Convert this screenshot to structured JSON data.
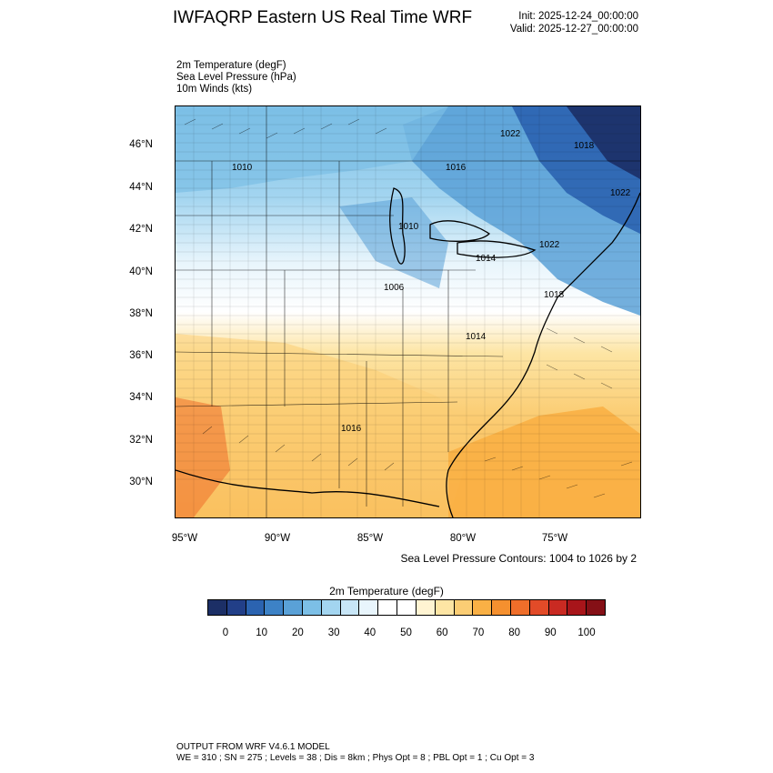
{
  "header": {
    "title": "IWFAQRP Eastern US Real Time WRF",
    "init": "Init: 2025-12-24_00:00:00",
    "valid": "Valid: 2025-12-27_00:00:00"
  },
  "fields": [
    "2m Temperature   (degF)",
    "Sea Level Pressure   (hPa)",
    "10m Winds   (kts)"
  ],
  "map": {
    "lat_labels": [
      "46°N",
      "44°N",
      "42°N",
      "40°N",
      "38°N",
      "36°N",
      "34°N",
      "32°N",
      "30°N"
    ],
    "lon_labels": [
      "95°W",
      "90°W",
      "85°W",
      "80°W",
      "75°W"
    ],
    "pressure_labels": [
      "1022",
      "1016",
      "1010",
      "1022",
      "1010",
      "1022",
      "1006",
      "1018",
      "1014",
      "1016",
      "1018",
      "1014"
    ],
    "slp_note": "Sea Level Pressure Contours: 1004 to 1026 by 2"
  },
  "colorbar": {
    "title": "2m Temperature  (degF)",
    "ticks": [
      "0",
      "10",
      "20",
      "30",
      "40",
      "50",
      "60",
      "70",
      "80",
      "90",
      "100"
    ],
    "colors": [
      "#1c2f66",
      "#223f88",
      "#2b63b0",
      "#3d82c6",
      "#5aa1d7",
      "#7cbfe6",
      "#a3d5f0",
      "#c8e6f7",
      "#e8f5fc",
      "#ffffff",
      "#ffffff",
      "#fff4d2",
      "#fde5a4",
      "#fbcd74",
      "#f9b045",
      "#f5902f",
      "#ef6e2a",
      "#e24b28",
      "#c92a22",
      "#a8151a",
      "#851016"
    ]
  },
  "footer": {
    "line1": "OUTPUT FROM WRF V4.6.1 MODEL",
    "line2": "WE = 310 ; SN = 275 ; Levels = 38 ; Dis = 8km ; Phys Opt = 8 ; PBL Opt = 1 ; Cu Opt = 3"
  }
}
